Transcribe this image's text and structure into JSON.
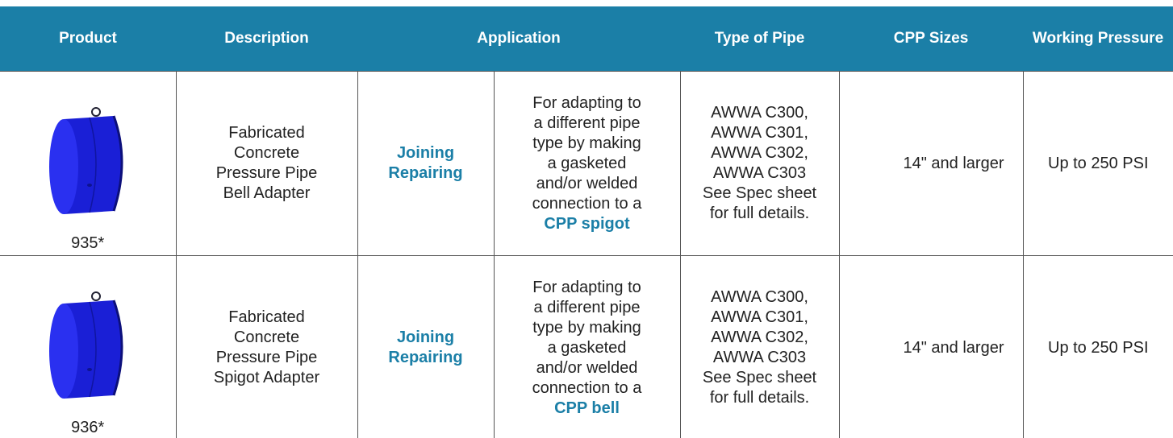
{
  "header": [
    "Product",
    "Description",
    "Application",
    "Type of Pipe",
    "CPP Sizes",
    "Working Pressure"
  ],
  "rows": [
    {
      "product": "935*",
      "description": [
        "Fabricated",
        "Concrete",
        "Pressure Pipe",
        "Bell Adapter"
      ],
      "application": [
        "Joining",
        "Repairing"
      ],
      "detail": [
        "For adapting to",
        "a different pipe",
        "type by making",
        "a gasketed",
        "and/or welded",
        "connection to a"
      ],
      "detail_link": "CPP spigot",
      "pipe_type": [
        "AWWA C300,",
        "AWWA C301,",
        "AWWA C302,",
        "AWWA C303",
        "See Spec sheet",
        "for full details."
      ],
      "sizes": "14\" and larger",
      "pressure": "Up to 250 PSI"
    },
    {
      "product": "936*",
      "description": [
        "Fabricated",
        "Concrete",
        "Pressure Pipe",
        "Spigot Adapter"
      ],
      "application": [
        "Joining",
        "Repairing"
      ],
      "detail": [
        "For adapting to",
        "a different pipe",
        "type by making",
        "a gasketed",
        "and/or welded",
        "connection to a"
      ],
      "detail_link": "CPP bell",
      "pipe_type": [
        "AWWA C300,",
        "AWWA C301,",
        "AWWA C302,",
        "AWWA C303",
        "See Spec sheet",
        "for full details."
      ],
      "sizes": "14\" and larger",
      "pressure": "Up to 250 PSI"
    }
  ]
}
